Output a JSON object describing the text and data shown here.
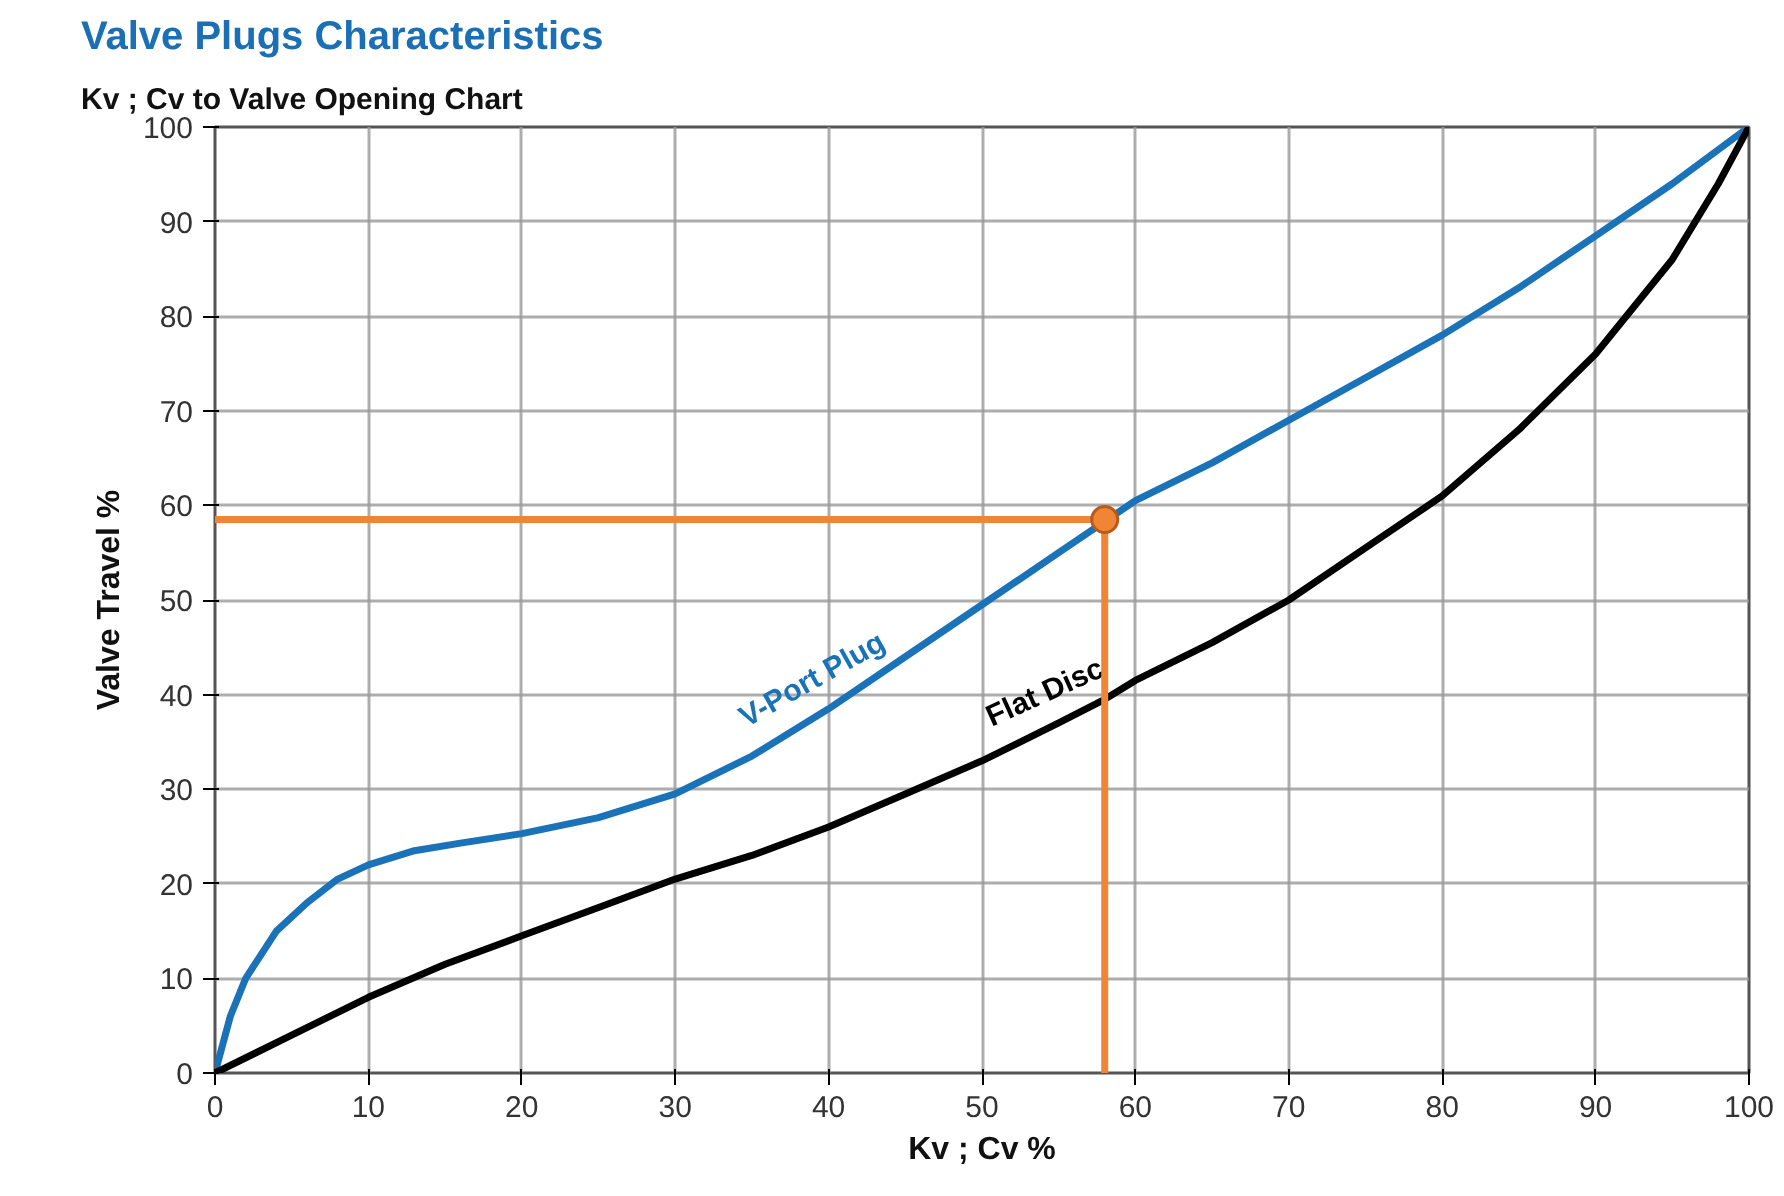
{
  "chart_data": {
    "type": "line",
    "title": "Valve Plugs Characteristics",
    "subtitle": "Kv ; Cv  to Valve Opening Chart",
    "xlabel": "Kv ; Cv %",
    "ylabel": "Valve Travel %",
    "xlim": [
      0,
      100
    ],
    "ylim": [
      0,
      100
    ],
    "xticks": [
      0,
      10,
      20,
      30,
      40,
      50,
      60,
      70,
      80,
      90,
      100
    ],
    "yticks": [
      0,
      10,
      20,
      30,
      40,
      50,
      60,
      70,
      80,
      90,
      100
    ],
    "grid": true,
    "marker": "none",
    "line_style": "solid",
    "series": [
      {
        "name": "V-Port Plug",
        "color": "#1a72b8",
        "x": [
          0,
          1,
          2,
          4,
          6,
          8,
          10,
          13,
          16,
          20,
          25,
          30,
          35,
          40,
          45,
          50,
          55,
          60,
          65,
          70,
          75,
          80,
          85,
          90,
          95,
          100
        ],
        "values": [
          0,
          6,
          10,
          15,
          18,
          20.5,
          22,
          23.5,
          24.3,
          25.3,
          27,
          29.5,
          33.5,
          38.5,
          44,
          49.5,
          55,
          60.5,
          64.5,
          69,
          73.5,
          78,
          83,
          88.5,
          94,
          100
        ]
      },
      {
        "name": "Flat Disc",
        "color": "#000000",
        "x": [
          0,
          5,
          10,
          15,
          20,
          25,
          30,
          35,
          40,
          45,
          50,
          55,
          58,
          60,
          65,
          70,
          75,
          80,
          85,
          90,
          95,
          98,
          100
        ],
        "values": [
          0,
          4,
          8,
          11.5,
          14.5,
          17.5,
          20.5,
          23,
          26,
          29.5,
          33,
          37,
          39.5,
          41.5,
          45.5,
          50,
          55.5,
          61,
          68,
          76,
          86,
          94,
          100
        ]
      },
      {
        "type": "line",
        "color": "#f08535",
        "x": [
          0,
          58,
          58
        ],
        "values": [
          58.5,
          58.5,
          0
        ]
      },
      {
        "type": "scatter",
        "color": "#f08535",
        "marker": "circle",
        "x": [
          58
        ],
        "values": [
          58.5
        ]
      }
    ]
  }
}
